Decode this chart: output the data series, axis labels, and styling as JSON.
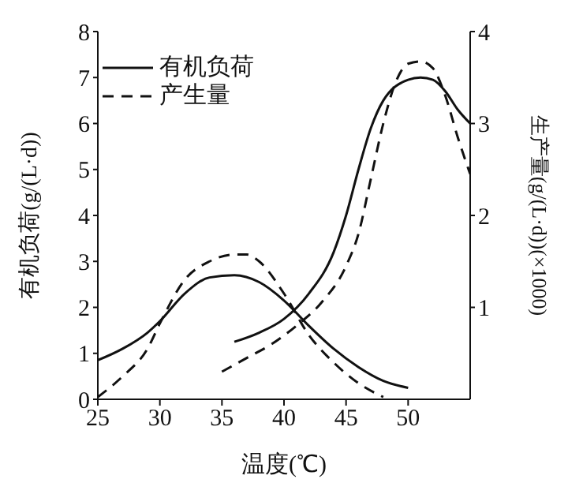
{
  "chart_data": {
    "type": "line",
    "xlabel": "温度(℃)",
    "ylabel": "有机负荷(g/(L·d))",
    "y2label": "生产量(g/(L·d))(×1000)",
    "xlim": [
      25,
      55
    ],
    "xticks": [
      25,
      30,
      35,
      40,
      45,
      50
    ],
    "ylim": [
      0,
      8
    ],
    "yticks": [
      0,
      1,
      2,
      3,
      4,
      5,
      6,
      7,
      8
    ],
    "y2lim": [
      0,
      4
    ],
    "y2ticks": [
      1,
      2,
      3,
      4
    ],
    "grid": false,
    "legend": "top left",
    "marker": "none",
    "series": [
      {
        "name": "有机负荷",
        "color": "#111111",
        "line_style": "solid",
        "x": [
          25,
          27,
          29,
          30,
          32,
          34,
          36,
          38,
          40,
          42,
          44,
          46,
          48,
          50
        ],
        "values": [
          0.85,
          1.1,
          1.45,
          1.7,
          2.3,
          2.65,
          2.7,
          2.55,
          2.15,
          1.6,
          1.1,
          0.7,
          0.4,
          0.25
        ]
      },
      {
        "name": "产生量",
        "color": "#111111",
        "line_style": "dashed",
        "x": [
          25,
          27,
          29,
          30,
          32,
          34,
          36,
          37,
          38,
          40,
          42,
          44,
          46,
          48
        ],
        "values": [
          0.05,
          0.5,
          1.1,
          1.65,
          2.6,
          3.0,
          3.15,
          3.15,
          3.0,
          2.3,
          1.4,
          0.8,
          0.35,
          0.05
        ]
      },
      {
        "color": "#111111",
        "line_style": "solid",
        "x": [
          36,
          38,
          40,
          42,
          44,
          45,
          46,
          47,
          48,
          50,
          51,
          52,
          53,
          54,
          55
        ],
        "values": [
          1.25,
          1.45,
          1.75,
          2.3,
          3.2,
          4.0,
          5.0,
          5.9,
          6.5,
          6.95,
          7.0,
          6.95,
          6.7,
          6.3,
          6.0
        ]
      },
      {
        "color": "#111111",
        "line_style": "dashed",
        "x": [
          35,
          37,
          39,
          41,
          43,
          45,
          46,
          47,
          48,
          49,
          50,
          51,
          52,
          53,
          54,
          55
        ],
        "values": [
          0.6,
          0.9,
          1.2,
          1.6,
          2.1,
          2.9,
          3.6,
          4.8,
          6.0,
          6.9,
          7.3,
          7.35,
          7.2,
          6.6,
          5.7,
          4.9
        ]
      }
    ]
  }
}
